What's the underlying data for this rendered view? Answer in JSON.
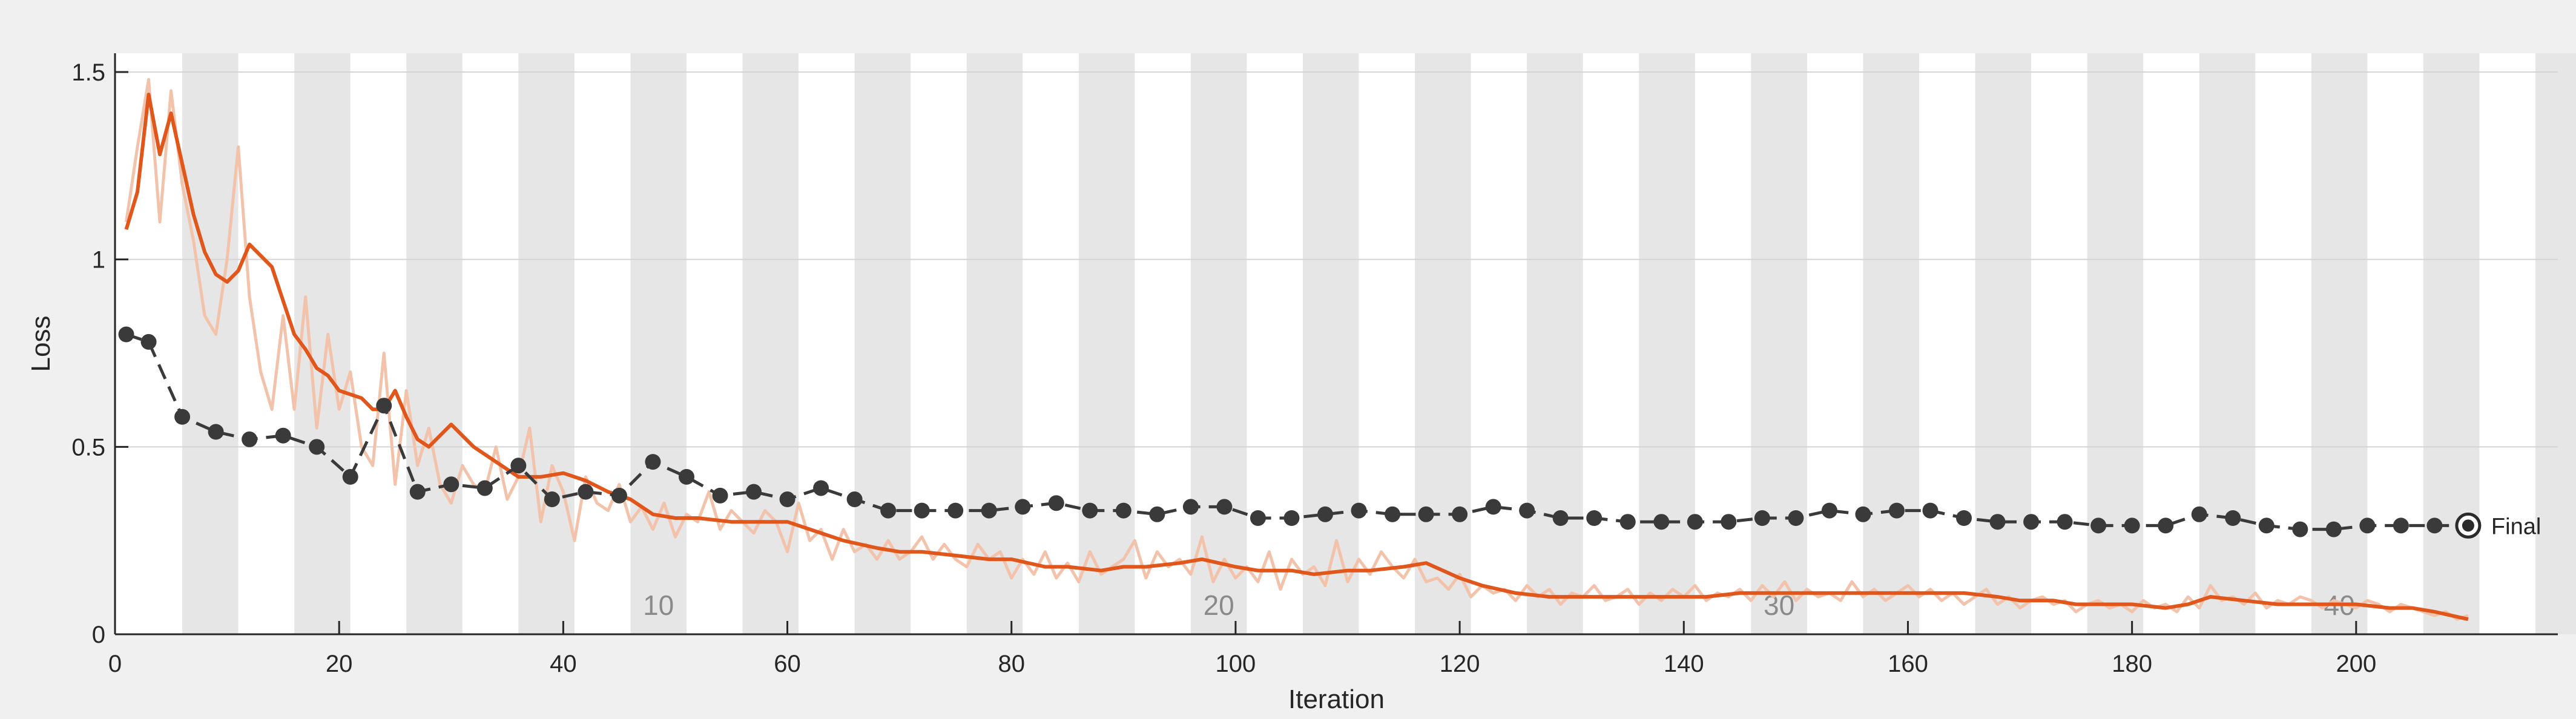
{
  "chart_data": {
    "type": "line",
    "title": "",
    "xlabel": "Iteration",
    "ylabel": "Loss",
    "xlim": [
      0,
      218
    ],
    "ylim": [
      0,
      1.55
    ],
    "x_ticks": [
      0,
      20,
      40,
      60,
      80,
      100,
      120,
      140,
      160,
      180,
      200
    ],
    "y_ticks": [
      0,
      0.5,
      1,
      1.5
    ],
    "y_tick_labels": [
      "0",
      "0.5",
      "1",
      "1.5"
    ],
    "grid": true,
    "epoch_bands": {
      "iterations_per_epoch": 5,
      "count": 44,
      "labels": [
        {
          "epoch": 10,
          "text": "10"
        },
        {
          "epoch": 20,
          "text": "20"
        },
        {
          "epoch": 30,
          "text": "30"
        },
        {
          "epoch": 40,
          "text": "40"
        }
      ]
    },
    "series": [
      {
        "kind": "raw",
        "color": "#f2c2aa",
        "x": [
          1,
          2,
          3,
          4,
          5,
          6,
          7,
          8,
          9,
          10,
          11,
          12,
          13,
          14,
          15,
          16,
          17,
          18,
          19,
          20,
          21,
          22,
          23,
          24,
          25,
          26,
          27,
          28,
          29,
          30,
          31,
          32,
          33,
          34,
          35,
          36,
          37,
          38,
          39,
          40,
          41,
          42,
          43,
          44,
          45,
          46,
          47,
          48,
          49,
          50,
          51,
          52,
          53,
          54,
          55,
          56,
          57,
          58,
          59,
          60,
          61,
          62,
          63,
          64,
          65,
          66,
          67,
          68,
          69,
          70,
          71,
          72,
          73,
          74,
          75,
          76,
          77,
          78,
          79,
          80,
          81,
          82,
          83,
          84,
          85,
          86,
          87,
          88,
          89,
          90,
          91,
          92,
          93,
          94,
          95,
          96,
          97,
          98,
          99,
          100,
          101,
          102,
          103,
          104,
          105,
          106,
          107,
          108,
          109,
          110,
          111,
          112,
          113,
          114,
          115,
          116,
          117,
          118,
          119,
          120,
          121,
          122,
          123,
          124,
          125,
          126,
          127,
          128,
          129,
          130,
          131,
          132,
          133,
          134,
          135,
          136,
          137,
          138,
          139,
          140,
          141,
          142,
          143,
          144,
          145,
          146,
          147,
          148,
          149,
          150,
          151,
          152,
          153,
          154,
          155,
          156,
          157,
          158,
          159,
          160,
          161,
          162,
          163,
          164,
          165,
          166,
          167,
          168,
          169,
          170,
          171,
          172,
          173,
          174,
          175,
          176,
          177,
          178,
          179,
          180,
          181,
          182,
          183,
          184,
          185,
          186,
          187,
          188,
          189,
          190,
          191,
          192,
          193,
          194,
          195,
          196,
          197,
          198,
          199,
          200,
          201,
          202,
          203,
          204,
          205,
          206,
          207,
          208,
          209,
          210
        ],
        "y": [
          1.1,
          1.3,
          1.48,
          1.1,
          1.45,
          1.2,
          1.05,
          0.85,
          0.8,
          1.0,
          1.3,
          0.9,
          0.7,
          0.6,
          0.85,
          0.6,
          0.9,
          0.55,
          0.8,
          0.6,
          0.7,
          0.5,
          0.45,
          0.75,
          0.4,
          0.65,
          0.45,
          0.55,
          0.4,
          0.35,
          0.45,
          0.4,
          0.38,
          0.5,
          0.36,
          0.42,
          0.55,
          0.3,
          0.45,
          0.38,
          0.25,
          0.42,
          0.35,
          0.33,
          0.4,
          0.3,
          0.34,
          0.28,
          0.35,
          0.26,
          0.32,
          0.3,
          0.38,
          0.28,
          0.33,
          0.3,
          0.27,
          0.33,
          0.3,
          0.22,
          0.35,
          0.25,
          0.28,
          0.2,
          0.28,
          0.22,
          0.24,
          0.2,
          0.25,
          0.2,
          0.22,
          0.26,
          0.2,
          0.24,
          0.2,
          0.18,
          0.24,
          0.2,
          0.22,
          0.15,
          0.2,
          0.16,
          0.22,
          0.15,
          0.19,
          0.14,
          0.22,
          0.16,
          0.18,
          0.2,
          0.25,
          0.15,
          0.22,
          0.18,
          0.2,
          0.16,
          0.26,
          0.14,
          0.2,
          0.15,
          0.18,
          0.14,
          0.22,
          0.12,
          0.2,
          0.16,
          0.18,
          0.13,
          0.25,
          0.14,
          0.2,
          0.16,
          0.22,
          0.18,
          0.15,
          0.2,
          0.14,
          0.15,
          0.12,
          0.16,
          0.1,
          0.13,
          0.11,
          0.12,
          0.09,
          0.13,
          0.1,
          0.12,
          0.08,
          0.11,
          0.1,
          0.13,
          0.09,
          0.1,
          0.12,
          0.08,
          0.11,
          0.09,
          0.12,
          0.1,
          0.13,
          0.09,
          0.11,
          0.1,
          0.12,
          0.09,
          0.13,
          0.1,
          0.14,
          0.09,
          0.12,
          0.1,
          0.11,
          0.09,
          0.14,
          0.1,
          0.12,
          0.09,
          0.11,
          0.13,
          0.1,
          0.12,
          0.09,
          0.11,
          0.08,
          0.1,
          0.12,
          0.08,
          0.1,
          0.07,
          0.09,
          0.1,
          0.08,
          0.09,
          0.06,
          0.08,
          0.09,
          0.07,
          0.08,
          0.06,
          0.09,
          0.07,
          0.08,
          0.06,
          0.1,
          0.07,
          0.13,
          0.09,
          0.1,
          0.08,
          0.11,
          0.07,
          0.09,
          0.08,
          0.1,
          0.09,
          0.07,
          0.09,
          0.08,
          0.07,
          0.09,
          0.08,
          0.06,
          0.08,
          0.07,
          0.06,
          0.05,
          0.06,
          0.04,
          0.05
        ]
      },
      {
        "kind": "smoothed",
        "color": "#e0561b",
        "x": [
          1,
          2,
          3,
          4,
          5,
          7,
          8,
          9,
          10,
          11,
          12,
          14,
          15,
          16,
          17,
          18,
          19,
          20,
          22,
          23,
          24,
          25,
          26,
          27,
          28,
          30,
          32,
          34,
          36,
          38,
          40,
          42,
          44,
          46,
          48,
          50,
          52,
          55,
          57,
          60,
          62,
          65,
          68,
          70,
          72,
          75,
          78,
          80,
          83,
          85,
          88,
          90,
          92,
          95,
          97,
          100,
          102,
          105,
          107,
          110,
          112,
          115,
          117,
          120,
          122,
          125,
          128,
          130,
          133,
          135,
          138,
          140,
          142,
          145,
          148,
          150,
          153,
          155,
          158,
          160,
          163,
          165,
          168,
          170,
          173,
          175,
          178,
          180,
          183,
          185,
          187,
          190,
          193,
          195,
          197,
          200,
          203,
          205,
          207,
          210
        ],
        "y": [
          1.08,
          1.18,
          1.44,
          1.28,
          1.39,
          1.12,
          1.02,
          0.96,
          0.94,
          0.97,
          1.04,
          0.98,
          0.89,
          0.8,
          0.76,
          0.71,
          0.69,
          0.65,
          0.63,
          0.6,
          0.6,
          0.65,
          0.58,
          0.52,
          0.5,
          0.56,
          0.5,
          0.46,
          0.42,
          0.42,
          0.43,
          0.41,
          0.38,
          0.36,
          0.32,
          0.31,
          0.31,
          0.3,
          0.3,
          0.3,
          0.28,
          0.25,
          0.23,
          0.22,
          0.22,
          0.21,
          0.2,
          0.2,
          0.18,
          0.18,
          0.17,
          0.18,
          0.18,
          0.19,
          0.2,
          0.18,
          0.17,
          0.17,
          0.16,
          0.17,
          0.17,
          0.18,
          0.19,
          0.15,
          0.13,
          0.11,
          0.1,
          0.1,
          0.1,
          0.1,
          0.1,
          0.1,
          0.1,
          0.11,
          0.11,
          0.11,
          0.11,
          0.11,
          0.11,
          0.11,
          0.11,
          0.11,
          0.1,
          0.09,
          0.09,
          0.08,
          0.08,
          0.08,
          0.07,
          0.08,
          0.1,
          0.09,
          0.08,
          0.08,
          0.08,
          0.08,
          0.07,
          0.07,
          0.06,
          0.04
        ]
      },
      {
        "kind": "validation",
        "color": "#3a3a3a",
        "x": [
          1,
          3,
          6,
          9,
          12,
          15,
          18,
          21,
          24,
          27,
          30,
          33,
          36,
          39,
          42,
          45,
          48,
          51,
          54,
          57,
          60,
          63,
          66,
          69,
          72,
          75,
          78,
          81,
          84,
          87,
          90,
          93,
          96,
          99,
          102,
          105,
          108,
          111,
          114,
          117,
          120,
          123,
          126,
          129,
          132,
          135,
          138,
          141,
          144,
          147,
          150,
          153,
          156,
          159,
          162,
          165,
          168,
          171,
          174,
          177,
          180,
          183,
          186,
          189,
          192,
          195,
          198,
          201,
          204,
          207,
          210
        ],
        "y": [
          0.8,
          0.78,
          0.58,
          0.54,
          0.52,
          0.53,
          0.5,
          0.42,
          0.61,
          0.38,
          0.4,
          0.39,
          0.45,
          0.36,
          0.38,
          0.37,
          0.46,
          0.42,
          0.37,
          0.38,
          0.36,
          0.39,
          0.36,
          0.33,
          0.33,
          0.33,
          0.33,
          0.34,
          0.35,
          0.33,
          0.33,
          0.32,
          0.34,
          0.34,
          0.31,
          0.31,
          0.32,
          0.33,
          0.32,
          0.32,
          0.32,
          0.34,
          0.33,
          0.31,
          0.31,
          0.3,
          0.3,
          0.3,
          0.3,
          0.31,
          0.31,
          0.33,
          0.32,
          0.33,
          0.33,
          0.31,
          0.3,
          0.3,
          0.3,
          0.29,
          0.29,
          0.29,
          0.32,
          0.31,
          0.29,
          0.28,
          0.28,
          0.29,
          0.29,
          0.29,
          0.29
        ]
      }
    ],
    "final_marker": {
      "x": 210,
      "y": 0.29,
      "label": "Final"
    }
  }
}
